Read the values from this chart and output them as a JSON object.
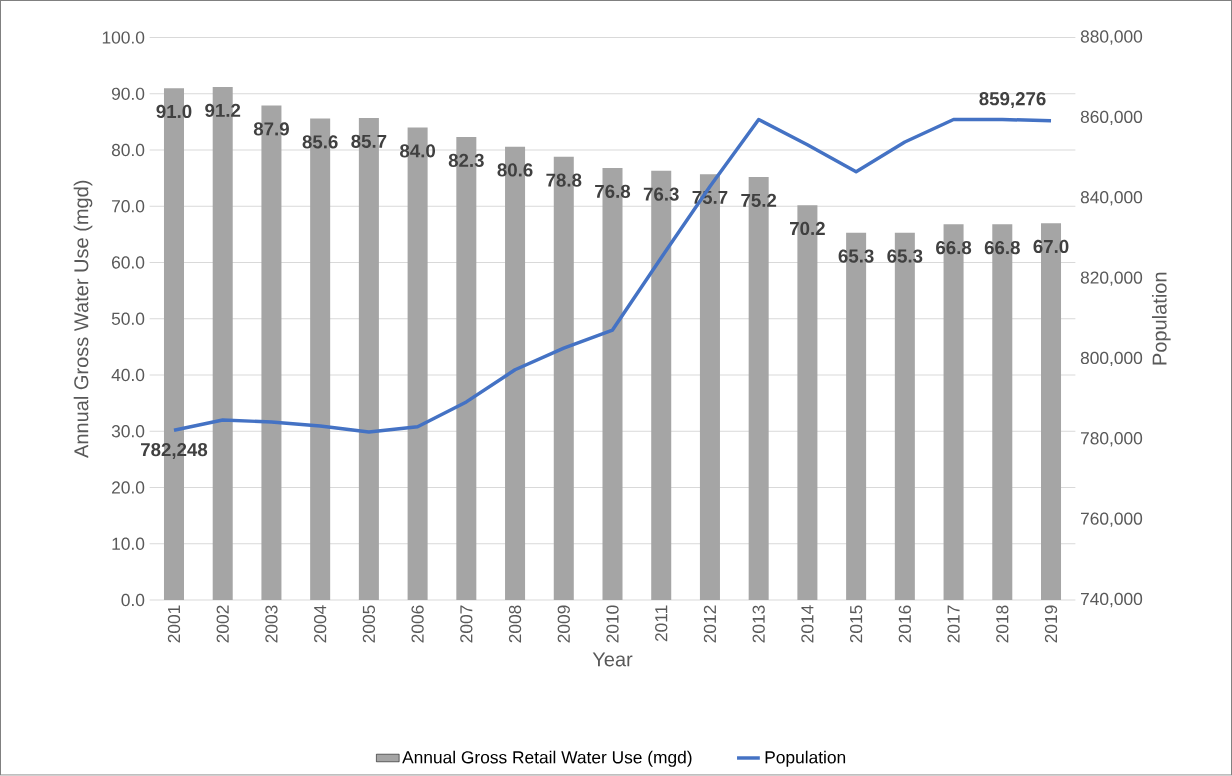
{
  "chart_data": {
    "type": "bar",
    "xlabel": "Year",
    "ylabel": "Annual Gross Water Use (mgd)",
    "y2label": "Population",
    "categories": [
      "2001",
      "2002",
      "2003",
      "2004",
      "2005",
      "2006",
      "2007",
      "2008",
      "2009",
      "2010",
      "2011",
      "2012",
      "2013",
      "2014",
      "2015",
      "2016",
      "2017",
      "2018",
      "2019"
    ],
    "series": [
      {
        "name": "Annual Gross Retail Water Use (mgd)",
        "color": "#a5a5a5",
        "values": [
          91.0,
          91.2,
          87.9,
          85.6,
          85.7,
          84.0,
          82.3,
          80.6,
          78.8,
          76.8,
          76.3,
          75.7,
          75.2,
          70.2,
          65.3,
          65.3,
          66.8,
          66.8,
          67.0
        ],
        "value_labels": [
          "91.0",
          "91.2",
          "87.9",
          "85.6",
          "85.7",
          "84.0",
          "82.3",
          "80.6",
          "78.8",
          "76.8",
          "76.3",
          "75.7",
          "75.2",
          "70.2",
          "65.3",
          "65.3",
          "66.8",
          "66.8",
          "67.0"
        ]
      },
      {
        "name": "Population",
        "type": "line",
        "axis": "y2",
        "color": "#4472c4",
        "values": [
          782248,
          784800,
          784300,
          783300,
          781800,
          783100,
          789300,
          797300,
          802700,
          807200,
          825200,
          842900,
          859600,
          853300,
          846600,
          854000,
          859600,
          859600,
          859276
        ],
        "value_labels": [
          "782,248",
          null,
          null,
          null,
          null,
          null,
          null,
          null,
          null,
          null,
          null,
          null,
          null,
          null,
          null,
          null,
          null,
          null,
          "859,276"
        ]
      }
    ],
    "ylim": [
      0,
      100
    ],
    "yticks": [
      {
        "value": 0,
        "label": "0.0"
      },
      {
        "value": 10,
        "label": "10.0"
      },
      {
        "value": 20,
        "label": "20.0"
      },
      {
        "value": 30,
        "label": "30.0"
      },
      {
        "value": 40,
        "label": "40.0"
      },
      {
        "value": 50,
        "label": "50.0"
      },
      {
        "value": 60,
        "label": "60.0"
      },
      {
        "value": 70,
        "label": "70.0"
      },
      {
        "value": 80,
        "label": "80.0"
      },
      {
        "value": 90,
        "label": "90.0"
      },
      {
        "value": 100,
        "label": "100.0"
      }
    ],
    "y2lim": [
      740000,
      880000
    ],
    "y2ticks": [
      {
        "value": 740000,
        "label": "740,000"
      },
      {
        "value": 760000,
        "label": "760,000"
      },
      {
        "value": 780000,
        "label": "780,000"
      },
      {
        "value": 800000,
        "label": "800,000"
      },
      {
        "value": 820000,
        "label": "820,000"
      },
      {
        "value": 840000,
        "label": "840,000"
      },
      {
        "value": 860000,
        "label": "860,000"
      },
      {
        "value": 880000,
        "label": "880,000"
      }
    ],
    "grid": "y",
    "legend": "bottom"
  }
}
